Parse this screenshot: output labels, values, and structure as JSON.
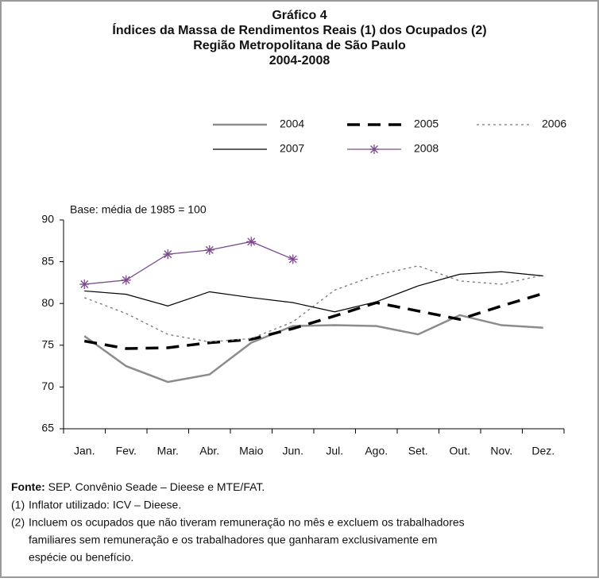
{
  "chart_data": {
    "type": "line",
    "title": [
      "Gráfico 4",
      "Índices da Massa de Rendimentos Reais (1) dos Ocupados (2)",
      "Região Metropolitana de São Paulo",
      "2004-2008"
    ],
    "annotation": "Base: média de 1985 = 100",
    "categories": [
      "Jan.",
      "Fev.",
      "Mar.",
      "Abr.",
      "Maio",
      "Jun.",
      "Jul.",
      "Ago.",
      "Set.",
      "Out.",
      "Nov.",
      "Dez."
    ],
    "ylim": [
      65,
      90
    ],
    "yticks": [
      65,
      70,
      75,
      80,
      85,
      90
    ],
    "series": [
      {
        "name": "2004",
        "color": "#8c8c8c",
        "width": 2.5,
        "dash": "none",
        "marker": "none",
        "values": [
          76.1,
          72.5,
          70.6,
          71.5,
          75.3,
          77.3,
          77.4,
          77.3,
          76.3,
          78.6,
          77.4,
          77.1
        ]
      },
      {
        "name": "2005",
        "color": "#000000",
        "width": 3.5,
        "dash": "16 10",
        "marker": "none",
        "values": [
          75.5,
          74.6,
          74.7,
          75.3,
          75.7,
          77.0,
          78.5,
          80.1,
          79.1,
          78.1,
          79.7,
          81.2
        ]
      },
      {
        "name": "2006",
        "color": "#777777",
        "width": 1.3,
        "dash": "3 4",
        "marker": "none",
        "values": [
          80.7,
          78.8,
          76.3,
          75.4,
          75.8,
          77.8,
          81.6,
          83.4,
          84.5,
          82.7,
          82.3,
          83.4
        ]
      },
      {
        "name": "2007",
        "color": "#000000",
        "width": 1.2,
        "dash": "none",
        "marker": "none",
        "values": [
          81.5,
          81.1,
          79.7,
          81.4,
          80.7,
          80.1,
          79.0,
          80.2,
          82.1,
          83.5,
          83.8,
          83.3
        ]
      },
      {
        "name": "2008",
        "color": "#7a4a8c",
        "width": 1.3,
        "dash": "none",
        "marker": "asterisk",
        "values": [
          82.3,
          82.8,
          85.9,
          86.4,
          87.4,
          85.3,
          null,
          null,
          null,
          null,
          null,
          null
        ]
      }
    ]
  },
  "footer": {
    "source_label": "Fonte:",
    "source": "SEP. Convênio Seade – Dieese e MTE/FAT.",
    "notes": [
      {
        "number": "(1)",
        "lines": [
          "Inflator utilizado: ICV – Dieese."
        ]
      },
      {
        "number": "(2)",
        "lines": [
          "Incluem os ocupados que não tiveram remuneração no mês e excluem os trabalhadores",
          "familiares sem remuneração e os trabalhadores que ganharam exclusivamente em",
          "espécie ou benefício."
        ]
      }
    ]
  }
}
